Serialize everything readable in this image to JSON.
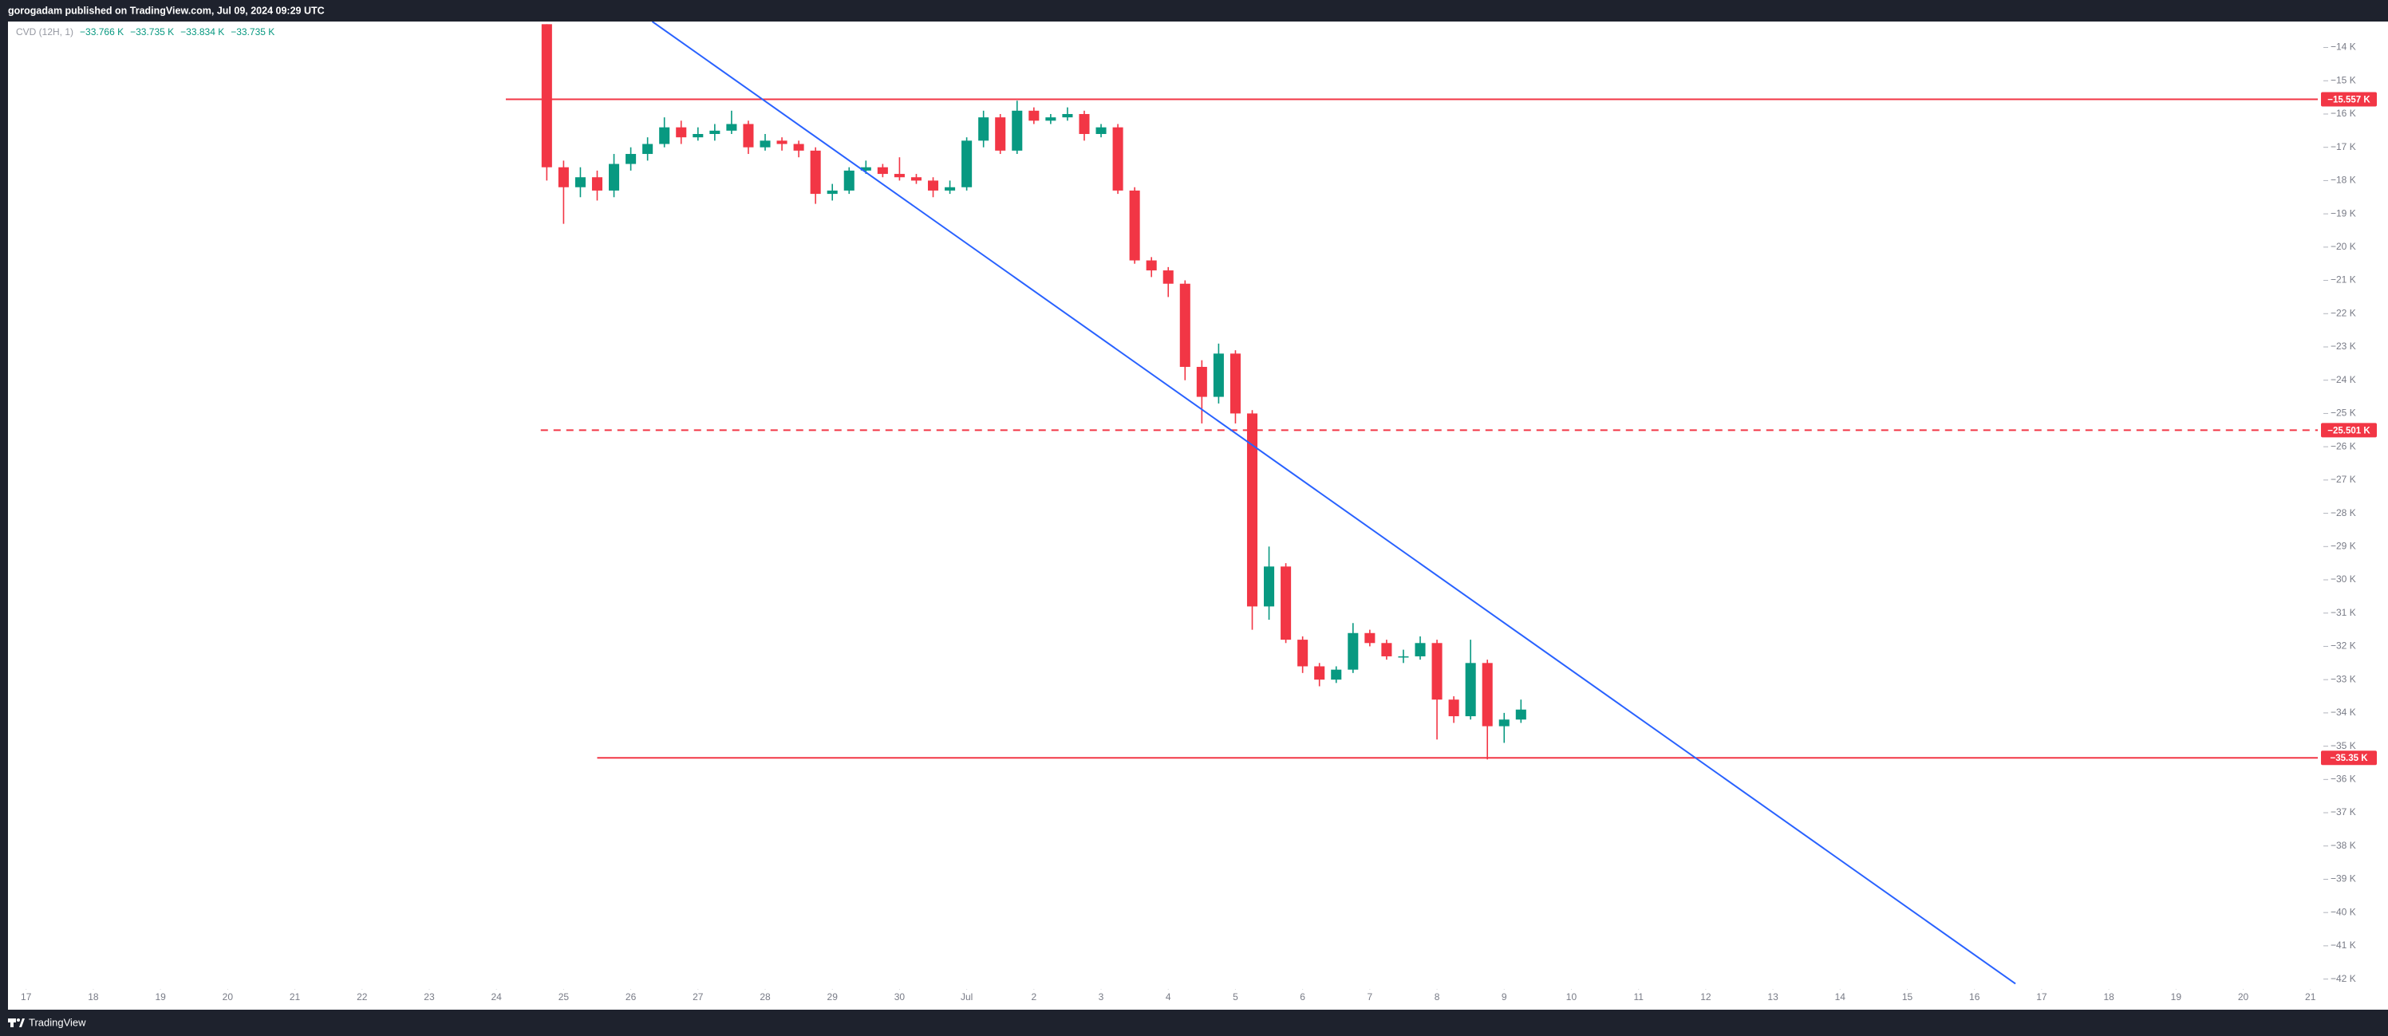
{
  "header": {
    "title": "gorogadam published on TradingView.com, Jul 09, 2024 09:29 UTC"
  },
  "footer": {
    "brand": "TradingView"
  },
  "chart_data": {
    "type": "candlestick",
    "legend": {
      "name": "CVD (12H, 1)",
      "values": [
        "−33.766 K",
        "−33.735 K",
        "−33.834 K",
        "−33.735 K"
      ]
    },
    "x": [
      7.75,
      8,
      8.25,
      8.5,
      8.75,
      9,
      9.25,
      9.5,
      9.75,
      10,
      10.25,
      10.5,
      10.75,
      11,
      11.25,
      11.5,
      11.75,
      12,
      12.25,
      12.5,
      12.75,
      13,
      13.25,
      13.5,
      13.75,
      14,
      14.25,
      14.5,
      14.75,
      15,
      15.25,
      15.5,
      15.75,
      16,
      16.25,
      16.5,
      16.75,
      17,
      17.25,
      17.5,
      17.75,
      18,
      18.25,
      18.5,
      18.75,
      19,
      19.25,
      19.5,
      19.75,
      20,
      20.25,
      20.5,
      20.75,
      21,
      21.25,
      21.5,
      21.75,
      22,
      22.25
    ],
    "open": [
      -13.3,
      -17.6,
      -18.2,
      -17.9,
      -18.3,
      -17.5,
      -17.2,
      -16.9,
      -16.4,
      -16.7,
      -16.6,
      -16.5,
      -16.3,
      -17.0,
      -16.8,
      -16.9,
      -17.1,
      -18.4,
      -18.3,
      -17.7,
      -17.6,
      -17.8,
      -17.9,
      -18.0,
      -18.3,
      -18.2,
      -16.8,
      -16.1,
      -17.1,
      -15.9,
      -16.2,
      -16.1,
      -16.0,
      -16.6,
      -16.4,
      -18.3,
      -20.4,
      -20.7,
      -21.1,
      -23.6,
      -24.5,
      -23.2,
      -25.0,
      -30.8,
      -29.6,
      -31.8,
      -32.6,
      -33.0,
      -32.7,
      -31.6,
      -31.9,
      -32.3,
      -32.3,
      -31.9,
      -33.6,
      -34.1,
      -32.5,
      -34.4,
      -34.2
    ],
    "high": [
      -13.3,
      -17.4,
      -17.6,
      -17.7,
      -17.2,
      -17.0,
      -16.7,
      -16.1,
      -16.2,
      -16.4,
      -16.3,
      -15.9,
      -16.2,
      -16.6,
      -16.7,
      -16.8,
      -17.0,
      -18.1,
      -17.6,
      -17.4,
      -17.5,
      -17.3,
      -17.8,
      -17.9,
      -18.0,
      -16.7,
      -15.9,
      -16.0,
      -15.6,
      -15.8,
      -16.0,
      -15.8,
      -15.9,
      -16.3,
      -16.3,
      -18.2,
      -20.3,
      -20.6,
      -21.0,
      -23.4,
      -22.9,
      -23.1,
      -24.9,
      -29.0,
      -29.5,
      -31.7,
      -32.5,
      -32.6,
      -31.3,
      -31.5,
      -31.8,
      -32.1,
      -31.7,
      -31.8,
      -33.5,
      -31.8,
      -32.4,
      -34.0,
      -33.6
    ],
    "low": [
      -18.0,
      -19.3,
      -18.5,
      -18.6,
      -18.5,
      -17.7,
      -17.4,
      -17.0,
      -16.9,
      -16.8,
      -16.8,
      -16.6,
      -17.2,
      -17.1,
      -17.1,
      -17.3,
      -18.7,
      -18.6,
      -18.4,
      -17.8,
      -17.9,
      -18.0,
      -18.1,
      -18.5,
      -18.4,
      -18.3,
      -17.0,
      -17.2,
      -17.2,
      -16.3,
      -16.3,
      -16.2,
      -16.8,
      -16.7,
      -18.4,
      -20.5,
      -20.9,
      -21.5,
      -24.0,
      -25.3,
      -24.7,
      -25.3,
      -31.5,
      -31.2,
      -31.9,
      -32.8,
      -33.2,
      -33.1,
      -32.8,
      -32.0,
      -32.4,
      -32.5,
      -32.4,
      -34.8,
      -34.3,
      -34.2,
      -35.4,
      -34.9,
      -34.3
    ],
    "close": [
      -17.6,
      -18.2,
      -17.9,
      -18.3,
      -17.5,
      -17.2,
      -16.9,
      -16.4,
      -16.7,
      -16.6,
      -16.5,
      -16.3,
      -17.0,
      -16.8,
      -16.9,
      -17.1,
      -18.4,
      -18.3,
      -17.7,
      -17.6,
      -17.8,
      -17.9,
      -18.0,
      -18.3,
      -18.2,
      -16.8,
      -16.1,
      -17.1,
      -15.9,
      -16.2,
      -16.1,
      -16.0,
      -16.6,
      -16.4,
      -18.3,
      -20.4,
      -20.7,
      -21.1,
      -23.6,
      -24.5,
      -23.2,
      -25.0,
      -30.8,
      -29.6,
      -31.8,
      -32.6,
      -33.0,
      -32.7,
      -31.6,
      -31.9,
      -32.3,
      -32.3,
      -31.9,
      -33.6,
      -34.1,
      -32.5,
      -34.4,
      -34.2,
      -33.9
    ],
    "up_color": "#089981",
    "down_color": "#f23645",
    "xlim": [
      -0.27,
      34.11
    ],
    "ylim": [
      -42.92,
      -13.22
    ],
    "xticks": [
      {
        "value": 0,
        "label": "17"
      },
      {
        "value": 1,
        "label": "18"
      },
      {
        "value": 2,
        "label": "19"
      },
      {
        "value": 3,
        "label": "20"
      },
      {
        "value": 4,
        "label": "21"
      },
      {
        "value": 5,
        "label": "22"
      },
      {
        "value": 6,
        "label": "23"
      },
      {
        "value": 7,
        "label": "24"
      },
      {
        "value": 8,
        "label": "25"
      },
      {
        "value": 9,
        "label": "26"
      },
      {
        "value": 10,
        "label": "27"
      },
      {
        "value": 11,
        "label": "28"
      },
      {
        "value": 12,
        "label": "29"
      },
      {
        "value": 13,
        "label": "30"
      },
      {
        "value": 14,
        "label": "Jul"
      },
      {
        "value": 15,
        "label": "2"
      },
      {
        "value": 16,
        "label": "3"
      },
      {
        "value": 17,
        "label": "4"
      },
      {
        "value": 18,
        "label": "5"
      },
      {
        "value": 19,
        "label": "6"
      },
      {
        "value": 20,
        "label": "7"
      },
      {
        "value": 21,
        "label": "8"
      },
      {
        "value": 22,
        "label": "9"
      },
      {
        "value": 23,
        "label": "10"
      },
      {
        "value": 24,
        "label": "11"
      },
      {
        "value": 25,
        "label": "12"
      },
      {
        "value": 26,
        "label": "13"
      },
      {
        "value": 27,
        "label": "14"
      },
      {
        "value": 28,
        "label": "15"
      },
      {
        "value": 29,
        "label": "16"
      },
      {
        "value": 30,
        "label": "17"
      },
      {
        "value": 31,
        "label": "18"
      },
      {
        "value": 32,
        "label": "19"
      },
      {
        "value": 33,
        "label": "20"
      },
      {
        "value": 34,
        "label": "21"
      }
    ],
    "yticks": [
      {
        "value": -14,
        "label": "−14 K"
      },
      {
        "value": -15,
        "label": "−15 K"
      },
      {
        "value": -16,
        "label": "−16 K"
      },
      {
        "value": -17,
        "label": "−17 K"
      },
      {
        "value": -18,
        "label": "−18 K"
      },
      {
        "value": -19,
        "label": "−19 K"
      },
      {
        "value": -20,
        "label": "−20 K"
      },
      {
        "value": -21,
        "label": "−21 K"
      },
      {
        "value": -22,
        "label": "−22 K"
      },
      {
        "value": -23,
        "label": "−23 K"
      },
      {
        "value": -24,
        "label": "−24 K"
      },
      {
        "value": -25,
        "label": "−25 K"
      },
      {
        "value": -26,
        "label": "−26 K"
      },
      {
        "value": -27,
        "label": "−27 K"
      },
      {
        "value": -28,
        "label": "−28 K"
      },
      {
        "value": -29,
        "label": "−29 K"
      },
      {
        "value": -30,
        "label": "−30 K"
      },
      {
        "value": -31,
        "label": "−31 K"
      },
      {
        "value": -32,
        "label": "−32 K"
      },
      {
        "value": -33,
        "label": "−33 K"
      },
      {
        "value": -34,
        "label": "−34 K"
      },
      {
        "value": -35,
        "label": "−35 K"
      },
      {
        "value": -36,
        "label": "−36 K"
      },
      {
        "value": -37,
        "label": "−37 K"
      },
      {
        "value": -38,
        "label": "−38 K"
      },
      {
        "value": -39,
        "label": "−39 K"
      },
      {
        "value": -40,
        "label": "−40 K"
      },
      {
        "value": -41,
        "label": "−41 K"
      },
      {
        "value": -42,
        "label": "−42 K"
      }
    ],
    "levels": [
      {
        "value": -15.557,
        "label": "−15.557 K",
        "x_start": 7.14,
        "dashed": false,
        "color": "#f23645"
      },
      {
        "value": -25.501,
        "label": "−25.501 K",
        "x_start": 7.66,
        "dashed": true,
        "color": "#f23645"
      },
      {
        "value": -35.35,
        "label": "−35.35 K",
        "x_start": 8.5,
        "dashed": false,
        "color": "#f23645"
      }
    ],
    "trendline": {
      "x": [
        9.32,
        29.61
      ],
      "values": [
        -13.22,
        -42.14
      ],
      "color": "#2962ff"
    },
    "grid": false
  }
}
